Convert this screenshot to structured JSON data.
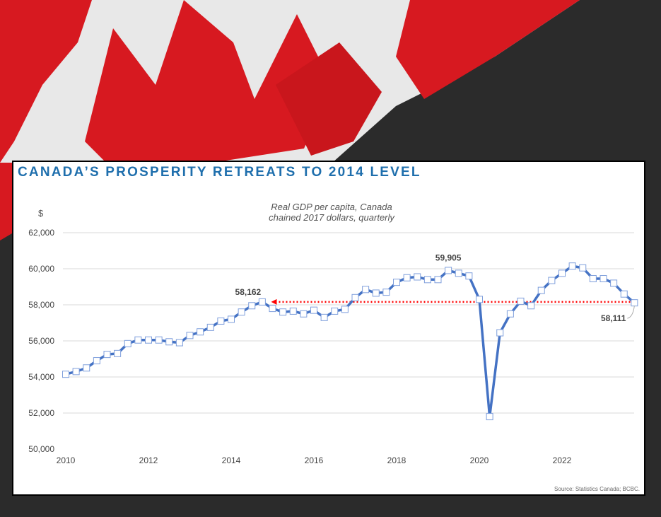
{
  "colors": {
    "title": "#1f6fad",
    "line": "#4472c4",
    "reference": "#ff0000",
    "background": "#2b2b2b",
    "flag_red": "#d71920"
  },
  "title": "CANADA’S PROSPERITY RETREATS TO 2014 LEVEL",
  "source": "Source: Statistics Canada; BCBC.",
  "chart_data": {
    "type": "line",
    "title": "Real GDP per capita, Canada",
    "subtitle": "chained 2017 dollars, quarterly",
    "ylabel": "$",
    "xlabel": "",
    "ylim": [
      50000,
      62000
    ],
    "yticks": [
      "50,000",
      "52,000",
      "54,000",
      "56,000",
      "58,000",
      "60,000",
      "62,000"
    ],
    "ytick_values": [
      50000,
      52000,
      54000,
      56000,
      58000,
      60000,
      62000
    ],
    "xlim": [
      2010,
      2024
    ],
    "xticks": [
      "2010",
      "2012",
      "2014",
      "2016",
      "2018",
      "2020",
      "2022"
    ],
    "xtick_values": [
      2010,
      2012,
      2014,
      2016,
      2018,
      2020,
      2022
    ],
    "grid": true,
    "x_start": "2010Q1",
    "frequency": "quarterly",
    "series": [
      {
        "values": [
          54150,
          54300,
          54500,
          54900,
          55250,
          55300,
          55850,
          56050,
          56050,
          56050,
          55950,
          55900,
          56300,
          56500,
          56750,
          57100,
          57200,
          57600,
          57950,
          58162,
          57800,
          57600,
          57650,
          57500,
          57700,
          57300,
          57650,
          57750,
          58400,
          58850,
          58650,
          58700,
          59250,
          59500,
          59550,
          59400,
          59400,
          59905,
          59750,
          59600,
          58300,
          51800,
          56450,
          57500,
          58200,
          57950,
          58800,
          59350,
          59750,
          60150,
          60050,
          59450,
          59450,
          59200,
          58600,
          58111
        ]
      }
    ],
    "annotations": [
      {
        "text": "58,162",
        "index": 19
      },
      {
        "text": "59,905",
        "index": 37
      },
      {
        "text": "58,111",
        "index": 55
      }
    ],
    "reference_line": {
      "value": 58162,
      "from_index": 20,
      "to_index": 55,
      "style": "dotted-arrow"
    }
  }
}
